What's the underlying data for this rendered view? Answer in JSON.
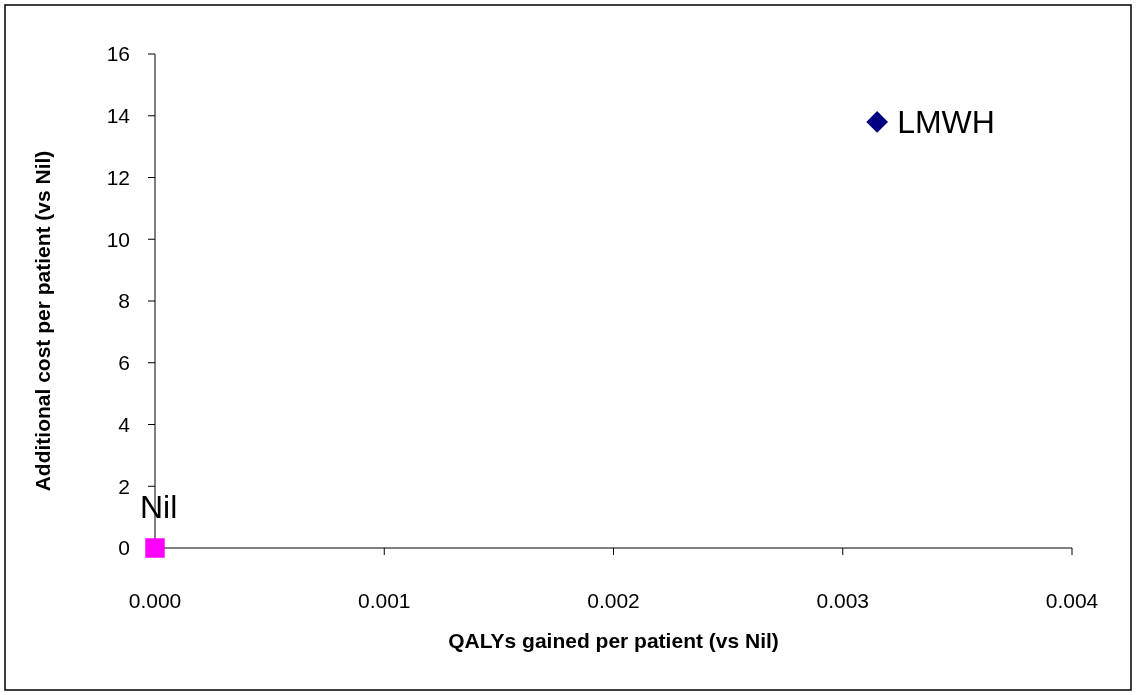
{
  "chart_data": {
    "type": "scatter",
    "xlabel": "QALYs gained per patient (vs Nil)",
    "ylabel": "Additional cost per patient (vs Nil)",
    "series": [
      {
        "name": "LMWH",
        "color": "#000080",
        "marker": "diamond",
        "x": [
          0.00315
        ],
        "values": [
          13.8
        ]
      },
      {
        "name": "Nil",
        "color": "#ff00ff",
        "marker": "square",
        "x": [
          0
        ],
        "values": [
          0
        ]
      }
    ],
    "xlim": [
      0,
      0.004
    ],
    "xticks": [
      {
        "value": 0,
        "label": "0.000"
      },
      {
        "value": 0.001,
        "label": "0.001"
      },
      {
        "value": 0.002,
        "label": "0.002"
      },
      {
        "value": 0.003,
        "label": "0.003"
      },
      {
        "value": 0.004,
        "label": "0.004"
      }
    ],
    "ylim": [
      0,
      16
    ],
    "yticks": [
      0,
      2,
      4,
      6,
      8,
      10,
      12,
      14,
      16
    ],
    "grid": false,
    "legend": false
  }
}
